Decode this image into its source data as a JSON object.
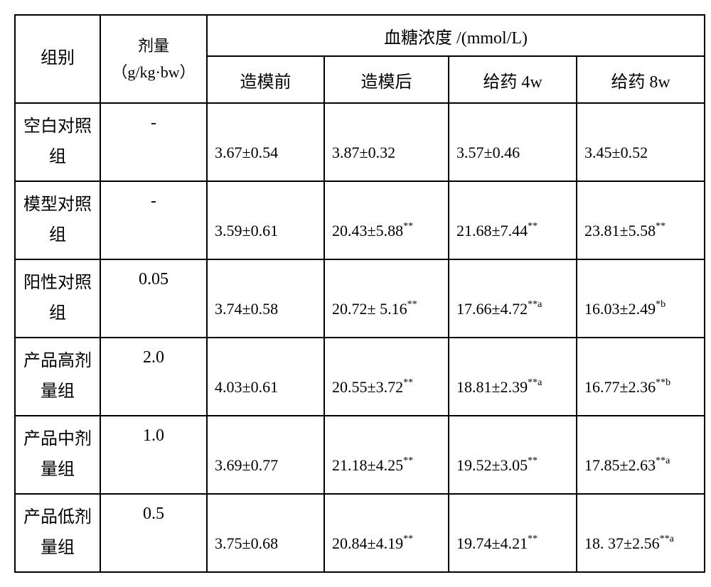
{
  "header": {
    "group": "组别",
    "dose_line1": "剂量",
    "dose_line2": "（g/kg·bw）",
    "conc": "血糖浓度 /(mmol/L)",
    "sub1": "造模前",
    "sub2": "造模后",
    "sub3": "给药 4w",
    "sub4": "给药 8w"
  },
  "rows": [
    {
      "label_l1": "空白对照",
      "label_l2": "组",
      "dose": "-",
      "c1": {
        "v": "3.67±0.54",
        "sup": ""
      },
      "c2": {
        "v": "3.87±0.32",
        "sup": ""
      },
      "c3": {
        "v": "3.57±0.46",
        "sup": ""
      },
      "c4": {
        "v": "3.45±0.52",
        "sup": ""
      }
    },
    {
      "label_l1": "模型对照",
      "label_l2": "组",
      "dose": "-",
      "c1": {
        "v": "3.59±0.61",
        "sup": ""
      },
      "c2": {
        "v": "20.43±5.88",
        "sup": "**"
      },
      "c3": {
        "v": "21.68±7.44",
        "sup": "**"
      },
      "c4": {
        "v": "23.81±5.58",
        "sup": "**"
      }
    },
    {
      "label_l1": "阳性对照",
      "label_l2": "组",
      "dose": "0.05",
      "c1": {
        "v": "3.74±0.58",
        "sup": ""
      },
      "c2": {
        "v": "20.72± 5.16",
        "sup": "**"
      },
      "c3": {
        "v": "17.66±4.72",
        "sup": "**a"
      },
      "c4": {
        "v": "16.03±2.49",
        "sup": "*b"
      }
    },
    {
      "label_l1": "产品高剂",
      "label_l2": "量组",
      "dose": "2.0",
      "c1": {
        "v": "4.03±0.61",
        "sup": ""
      },
      "c2": {
        "v": "20.55±3.72",
        "sup": "**"
      },
      "c3": {
        "v": "18.81±2.39",
        "sup": "**a"
      },
      "c4": {
        "v": "16.77±2.36",
        "sup": "**b"
      }
    },
    {
      "label_l1": "产品中剂",
      "label_l2": "量组",
      "dose": "1.0",
      "c1": {
        "v": "3.69±0.77",
        "sup": ""
      },
      "c2": {
        "v": "21.18±4.25",
        "sup": "**"
      },
      "c3": {
        "v": "19.52±3.05",
        "sup": "**"
      },
      "c4": {
        "v": "17.85±2.63",
        "sup": "**a"
      }
    },
    {
      "label_l1": "产品低剂",
      "label_l2": "量组",
      "dose": "0.5",
      "c1": {
        "v": "3.75±0.68",
        "sup": ""
      },
      "c2": {
        "v": "20.84±4.19",
        "sup": "**"
      },
      "c3": {
        "v": "19.74±4.21",
        "sup": "**"
      },
      "c4": {
        "v": "18. 37±2.56",
        "sup": "**a"
      }
    }
  ]
}
